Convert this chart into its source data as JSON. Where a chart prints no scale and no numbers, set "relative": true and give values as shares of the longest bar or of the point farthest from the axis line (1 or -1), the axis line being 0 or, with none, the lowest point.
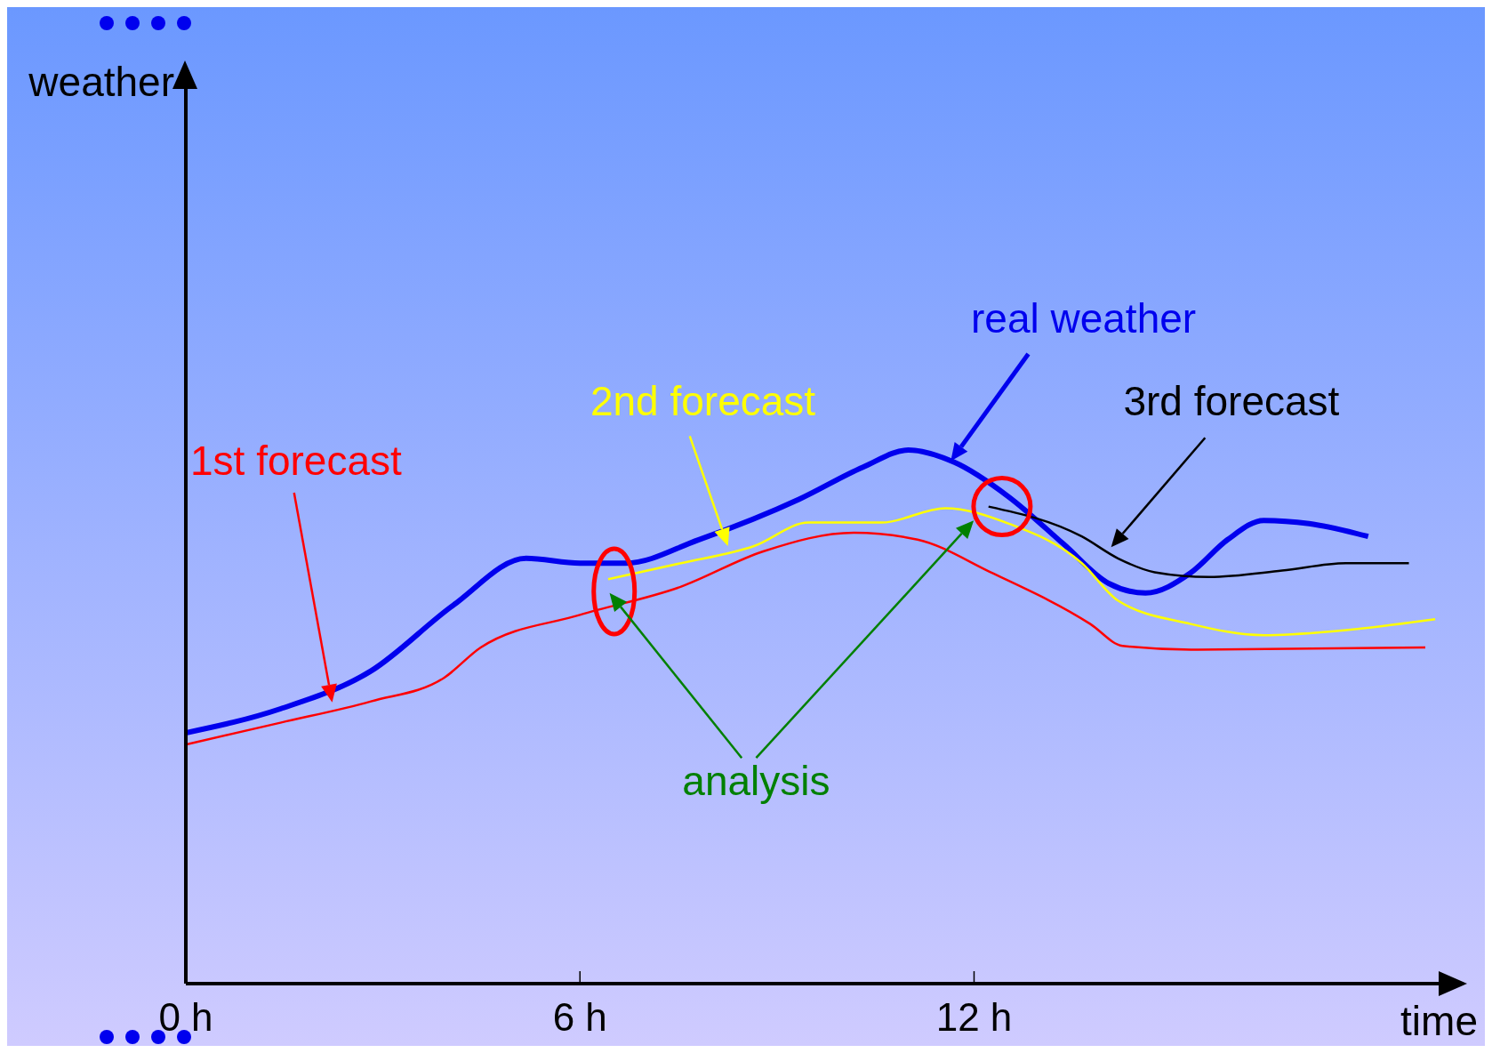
{
  "chart_data": {
    "type": "line",
    "relative": true,
    "xlabel": "time",
    "xlim": [
      0,
      19.1
    ],
    "xticks": [
      {
        "value": 0,
        "label": "0 h"
      },
      {
        "value": 6,
        "label": "6 h"
      },
      {
        "value": 12,
        "label": "12 h"
      }
    ],
    "marker": "none",
    "line_style": "solid",
    "annotations": [
      "analysis",
      "weather"
    ],
    "series": [
      {
        "name": "real weather",
        "color": "#0000ee",
        "x": [
          0,
          1.44,
          2.82,
          4.07,
          5.18,
          6,
          6.7,
          7.81,
          9.34,
          10.31,
          11.0,
          11.7,
          12.53,
          13.36,
          14.05,
          14.61,
          15.3,
          15.86,
          16.41,
          17.1,
          18.0
        ],
        "values": [
          0.47,
          0.515,
          0.586,
          0.709,
          0.797,
          0.788,
          0.788,
          0.832,
          0.908,
          0.968,
          1,
          0.977,
          0.912,
          0.824,
          0.75,
          0.732,
          0.77,
          0.832,
          0.868,
          0.862,
          0.838
        ]
      },
      {
        "name": "1st forecast",
        "color": "#ff0000",
        "x": [
          0,
          1.44,
          2.82,
          3.93,
          4.49,
          6,
          7.54,
          8.79,
          10.17,
          11.14,
          12.25,
          13.77,
          14.26,
          15.3,
          18.87
        ],
        "values": [
          0.448,
          0.489,
          0.529,
          0.573,
          0.63,
          0.691,
          0.744,
          0.81,
          0.845,
          0.832,
          0.771,
          0.674,
          0.633,
          0.626,
          0.63
        ]
      },
      {
        "name": "2nd forecast",
        "color": "#ffff00",
        "x": [
          6.43,
          7.54,
          8.65,
          9.48,
          10.59,
          11.56,
          12.53,
          13.64,
          14.19,
          15.3,
          16.41,
          17.52,
          19.02
        ],
        "values": [
          0.758,
          0.788,
          0.82,
          0.864,
          0.864,
          0.891,
          0.862,
          0.788,
          0.718,
          0.674,
          0.653,
          0.661,
          0.683
        ]
      },
      {
        "name": "3rd forecast",
        "color": "#000000",
        "x": [
          12.22,
          13.64,
          14.19,
          14.75,
          15.58,
          16.69,
          17.66,
          18.62
        ],
        "values": [
          0.894,
          0.838,
          0.797,
          0.771,
          0.762,
          0.774,
          0.788,
          0.788
        ]
      }
    ]
  }
}
